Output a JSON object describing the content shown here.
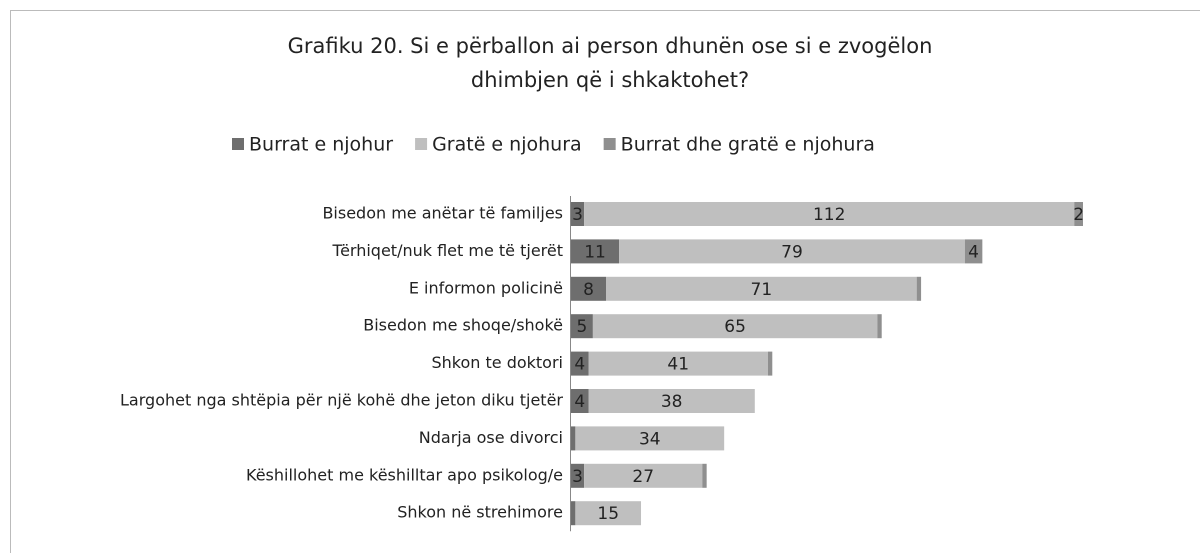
{
  "chart_data": {
    "type": "stacked_barh",
    "title": [
      "Grafiku 20. Si e përballon ai person dhunën ose si e zvogëlon",
      "dhimbjen që i shkaktohet?"
    ],
    "categories": [
      "Bisedon me anëtar të familjes",
      "Tërhiqet/nuk flet me të tjerët",
      "E informon policinë",
      "Bisedon me shoqe/shokë",
      "Shkon te doktori",
      "Largohet nga shtëpia për një kohë dhe jeton diku tjetër",
      "Ndarja ose divorci",
      "Këshillohet me këshilltar apo psikolog/e",
      "Shkon në strehimore"
    ],
    "series": [
      {
        "name": "Burrat e njohur",
        "color": "#6e6e6e",
        "values": [
          3,
          11,
          8,
          5,
          4,
          4,
          1,
          3,
          1
        ],
        "value_labels": [
          "3",
          "11",
          "8",
          "5",
          "4",
          "4",
          null,
          "3",
          null
        ]
      },
      {
        "name": "Gratë e njohura",
        "color": "#bfbfbf",
        "values": [
          112,
          79,
          71,
          65,
          41,
          38,
          34,
          27,
          15
        ],
        "value_labels": [
          "112",
          "79",
          "71",
          "65",
          "41",
          "38",
          "34",
          "27",
          "15"
        ]
      },
      {
        "name": "Burrat dhe gratë e njohura",
        "color": "#8f8f8f",
        "values": [
          2,
          4,
          1,
          1,
          1,
          0,
          0,
          1,
          0
        ],
        "value_labels": [
          "2",
          "4",
          null,
          null,
          null,
          null,
          null,
          null,
          null
        ]
      }
    ],
    "legend": "top"
  }
}
